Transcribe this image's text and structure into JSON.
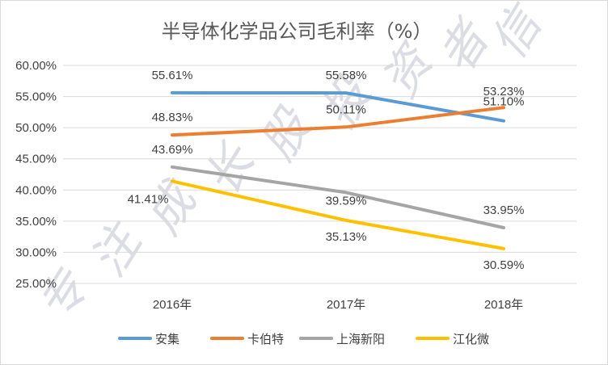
{
  "chart_data": {
    "type": "line",
    "title": "半导体化学品公司毛利率（%）",
    "categories": [
      "2016年",
      "2017年",
      "2018年"
    ],
    "ylim": [
      25,
      60
    ],
    "ytick_labels": [
      "25.00%",
      "30.00%",
      "35.00%",
      "40.00%",
      "45.00%",
      "50.00%",
      "55.00%",
      "60.00%"
    ],
    "grid": true,
    "legend_position": "bottom",
    "series": [
      {
        "name": "安集",
        "values": [
          55.61,
          55.58,
          51.1
        ],
        "labels": [
          "55.61%",
          "55.58%",
          "51.10%"
        ],
        "color": "#5b9bd5"
      },
      {
        "name": "卡伯特",
        "values": [
          48.83,
          50.11,
          53.23
        ],
        "labels": [
          "48.83%",
          "50.11%",
          "53.23%"
        ],
        "color": "#ed7d31"
      },
      {
        "name": "上海新阳",
        "values": [
          43.69,
          39.59,
          33.95
        ],
        "labels": [
          "43.69%",
          "39.59%",
          "33.95%"
        ],
        "color": "#a5a5a5"
      },
      {
        "name": "江化微",
        "values": [
          41.41,
          35.13,
          30.59
        ],
        "labels": [
          "41.41%",
          "35.13%",
          "30.59%"
        ],
        "color": "#ffc000"
      }
    ]
  },
  "watermark": [
    "专",
    "注",
    "成",
    "长",
    "股",
    "投",
    "资",
    "者",
    "信"
  ]
}
